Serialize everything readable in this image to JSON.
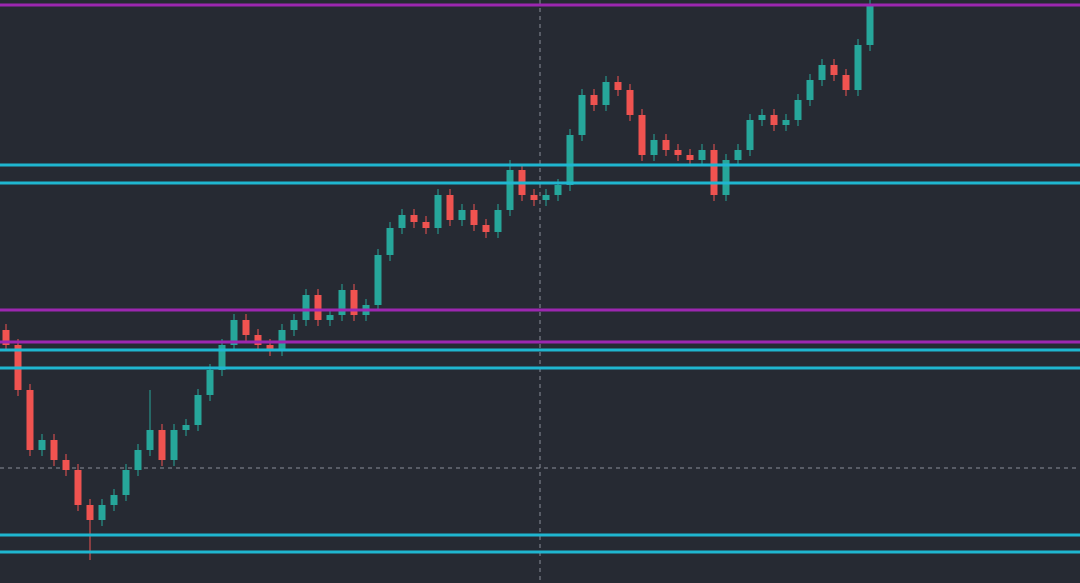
{
  "chart_data": {
    "type": "candlestick",
    "up_color": "#26a69a",
    "down_color": "#ef5350",
    "ylim": [
      0,
      583
    ],
    "open": [
      253,
      238,
      193,
      133,
      143,
      123,
      113,
      78,
      63,
      78,
      88,
      113,
      133,
      153,
      123,
      153,
      158,
      188,
      213,
      238,
      263,
      248,
      238,
      233,
      253,
      263,
      288,
      263,
      268,
      293,
      268,
      278,
      328,
      355,
      368,
      361,
      355,
      388,
      363,
      373,
      358,
      351,
      373,
      413,
      388,
      383,
      388,
      398,
      448,
      488,
      478,
      501,
      493,
      468,
      428,
      443,
      433,
      428,
      423,
      433,
      388,
      423,
      433,
      463,
      468,
      458,
      463,
      483,
      503,
      518,
      508,
      493,
      538
    ],
    "high": [
      259,
      244,
      199,
      149,
      149,
      129,
      119,
      84,
      84,
      94,
      119,
      139,
      193,
      159,
      159,
      164,
      194,
      219,
      244,
      269,
      269,
      254,
      244,
      259,
      269,
      294,
      294,
      274,
      299,
      299,
      284,
      334,
      361,
      374,
      374,
      367,
      394,
      394,
      379,
      379,
      364,
      379,
      423,
      419,
      394,
      394,
      404,
      454,
      494,
      494,
      507,
      507,
      499,
      474,
      449,
      449,
      439,
      434,
      439,
      439,
      429,
      439,
      469,
      474,
      474,
      469,
      489,
      509,
      524,
      524,
      514,
      544,
      583
    ],
    "low": [
      232,
      187,
      127,
      127,
      117,
      107,
      72,
      23,
      57,
      72,
      82,
      107,
      127,
      117,
      117,
      147,
      152,
      182,
      207,
      232,
      242,
      232,
      227,
      227,
      247,
      257,
      257,
      257,
      262,
      262,
      262,
      272,
      322,
      349,
      355,
      349,
      349,
      357,
      357,
      352,
      345,
      345,
      367,
      382,
      377,
      377,
      382,
      392,
      442,
      472,
      472,
      487,
      462,
      422,
      422,
      427,
      422,
      417,
      417,
      382,
      382,
      417,
      427,
      457,
      452,
      452,
      457,
      477,
      497,
      502,
      487,
      487,
      532
    ],
    "close": [
      238,
      193,
      133,
      143,
      123,
      113,
      78,
      63,
      78,
      88,
      113,
      133,
      153,
      123,
      153,
      158,
      188,
      213,
      238,
      263,
      248,
      238,
      233,
      253,
      263,
      288,
      263,
      268,
      293,
      268,
      278,
      328,
      355,
      368,
      361,
      355,
      388,
      363,
      373,
      358,
      351,
      373,
      413,
      388,
      383,
      388,
      398,
      448,
      488,
      478,
      501,
      493,
      468,
      428,
      443,
      433,
      428,
      423,
      433,
      388,
      423,
      433,
      463,
      468,
      458,
      463,
      483,
      503,
      518,
      508,
      493,
      538,
      578
    ],
    "levels": [
      {
        "value": 578,
        "color": "#9c27b0"
      },
      {
        "value": 418,
        "color": "#1fb6d0"
      },
      {
        "value": 400,
        "color": "#1fb6d0"
      },
      {
        "value": 273,
        "color": "#9c27b0"
      },
      {
        "value": 241,
        "color": "#9c27b0"
      },
      {
        "value": 233,
        "color": "#1fb6d0"
      },
      {
        "value": 215,
        "color": "#1fb6d0"
      },
      {
        "value": 48,
        "color": "#1fb6d0"
      },
      {
        "value": 31,
        "color": "#1fb6d0"
      }
    ]
  }
}
